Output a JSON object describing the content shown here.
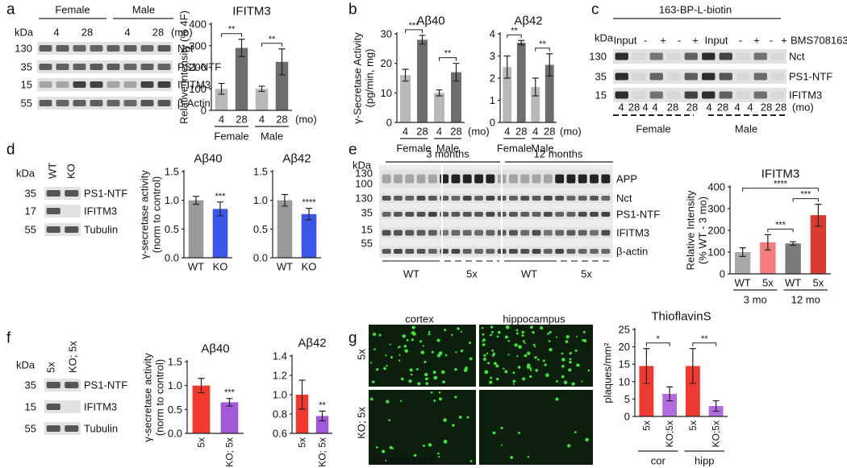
{
  "panels": [
    "a",
    "b",
    "c",
    "d",
    "e",
    "f",
    "g"
  ],
  "blot_a": {
    "kda_label": "kDa",
    "groups": [
      "Female",
      "Male"
    ],
    "times": [
      "4",
      "28",
      "4",
      "28"
    ],
    "unit": "(mo)",
    "markers": [
      "130",
      "35",
      "15",
      "55"
    ],
    "proteins": [
      "Nct",
      "PS1-NTF",
      "IFITM3",
      "β-Actin"
    ]
  },
  "blot_c": {
    "title": "163-BP-L-biotin",
    "kda_label": "kDa",
    "lanes": [
      "Input",
      "-",
      "+",
      "-",
      "+",
      "Input",
      "-",
      "+",
      "-",
      "+"
    ],
    "compound": "BMS708163",
    "markers": [
      "130",
      "35",
      "15"
    ],
    "proteins": [
      "Nct",
      "PS1-NTF",
      "IFITM3"
    ],
    "times": [
      "4",
      "28",
      "4",
      "4",
      "28",
      "28",
      "4",
      "28",
      "4",
      "4",
      "28",
      "28"
    ],
    "unit": "(mo)",
    "groups": [
      "Female",
      "Male"
    ]
  },
  "blot_d": {
    "kda_label": "kDa",
    "lanes": [
      "WT",
      "KO"
    ],
    "markers": [
      "35",
      "17",
      "55"
    ],
    "proteins": [
      "PS1-NTF",
      "IFITM3",
      "Tubulin"
    ]
  },
  "blot_e": {
    "kda_label": "kDa",
    "periods": [
      "3 months",
      "12 months"
    ],
    "markers": [
      "130",
      "100",
      "130",
      "35",
      "15",
      "55"
    ],
    "proteins": [
      "APP",
      "Nct",
      "PS1-NTF",
      "IFITM3",
      "β-actin"
    ],
    "genotypes": [
      "WT",
      "5x",
      "WT",
      "5x"
    ]
  },
  "blot_f": {
    "kda_label": "kDa",
    "lanes": [
      "5x",
      "KO; 5x"
    ],
    "markers": [
      "35",
      "15",
      "55"
    ],
    "proteins": [
      "PS1-NTF",
      "IFITM3",
      "Tubulin"
    ]
  },
  "images_g": {
    "columns": [
      "cortex",
      "hippocampus"
    ],
    "rows": [
      "5x",
      "KO; 5x"
    ],
    "stain": "ThioflavinS"
  },
  "chart_data": [
    {
      "type": "bar",
      "title": "IFITM3",
      "ylabel": [
        "Relative intensity (% 4F)"
      ],
      "categories": [
        "4",
        "28",
        "4",
        "28"
      ],
      "values": [
        100,
        290,
        100,
        225
      ],
      "errors": [
        25,
        40,
        12,
        60
      ],
      "colors": [
        "#b8b8b8",
        "#6e6e6e",
        "#b8b8b8",
        "#6e6e6e"
      ],
      "ylim": [
        0,
        400
      ],
      "yticks": [
        0,
        100,
        200,
        300,
        400
      ],
      "groups": [
        "Female",
        "Male"
      ],
      "unit": "(mo)",
      "annotations": [
        "**",
        "**"
      ]
    },
    {
      "type": "bar",
      "title": "Aβ40",
      "ylabel": [
        "γ-Secretase Activity",
        "(pg/min, mg)"
      ],
      "categories": [
        "4",
        "28",
        "4",
        "28"
      ],
      "values": [
        16,
        28,
        10,
        17
      ],
      "errors": [
        2,
        1.5,
        1,
        3
      ],
      "colors": [
        "#b8b8b8",
        "#6e6e6e",
        "#b8b8b8",
        "#6e6e6e"
      ],
      "ylim": [
        0,
        30
      ],
      "yticks": [
        0,
        10,
        20,
        30
      ],
      "groups": [
        "Female",
        "Male"
      ],
      "unit": "(mo)",
      "annotations": [
        "***",
        "**"
      ]
    },
    {
      "type": "bar",
      "title": "Aβ42",
      "categories": [
        "4",
        "28",
        "4",
        "28"
      ],
      "values": [
        2.5,
        3.6,
        1.6,
        2.6
      ],
      "errors": [
        0.5,
        0.1,
        0.4,
        0.5
      ],
      "colors": [
        "#b8b8b8",
        "#6e6e6e",
        "#b8b8b8",
        "#6e6e6e"
      ],
      "ylim": [
        0,
        4
      ],
      "yticks": [
        0,
        1,
        2,
        3,
        4
      ],
      "groups": [
        "Female",
        "Male"
      ],
      "unit": "(mo)",
      "annotations": [
        "**",
        "**"
      ]
    },
    {
      "type": "bar",
      "title": "Aβ40",
      "ylabel": [
        "γ-secretase activity",
        "(norm to control)"
      ],
      "categories": [
        "WT",
        "KO"
      ],
      "values": [
        1.0,
        0.85
      ],
      "errors": [
        0.07,
        0.12
      ],
      "colors": [
        "#9a9a9a",
        "#3a56e8"
      ],
      "ylim": [
        0,
        1.5
      ],
      "yticks": [
        {
          "value": 0,
          "label": "0.0"
        },
        0.5,
        {
          "value": 1,
          "label": "1.0"
        },
        1.5
      ],
      "annotations": [
        "***"
      ]
    },
    {
      "type": "bar",
      "title": "Aβ42",
      "categories": [
        "WT",
        "KO"
      ],
      "values": [
        1.0,
        0.76
      ],
      "errors": [
        0.1,
        0.1
      ],
      "colors": [
        "#9a9a9a",
        "#3a56e8"
      ],
      "ylim": [
        0,
        1.5
      ],
      "yticks": [
        {
          "value": 0,
          "label": "0.0"
        },
        0.5,
        {
          "value": 1,
          "label": "1.0"
        },
        1.5
      ],
      "annotations": [
        "****"
      ]
    },
    {
      "type": "bar",
      "title": "IFITM3",
      "ylabel": [
        "Relative Intensity",
        "(% WT - 3 mo)"
      ],
      "categories": [
        "WT",
        "5x",
        "WT",
        "5x"
      ],
      "values": [
        100,
        145,
        140,
        270
      ],
      "errors": [
        20,
        35,
        8,
        50
      ],
      "colors": [
        "#a9a9a9",
        "#f47c7c",
        "#7b7b7b",
        "#d93a2f"
      ],
      "ylim": [
        0,
        400
      ],
      "yticks": [
        0,
        100,
        200,
        300,
        400
      ],
      "groups": [
        "3 mo",
        "12 mo"
      ],
      "annotations": [
        "***",
        "***",
        "****"
      ]
    },
    {
      "type": "bar",
      "title": "Aβ40",
      "ylabel": [
        "γ-secretase activity",
        "(norm to control)"
      ],
      "categories": [
        "5x",
        "KO; 5x"
      ],
      "values": [
        1.0,
        0.65
      ],
      "errors": [
        0.15,
        0.08
      ],
      "colors": [
        "#f2392c",
        "#a259d9"
      ],
      "ylim": [
        0,
        1.5
      ],
      "yticks": [
        {
          "value": 0,
          "label": "0.0"
        },
        0.5,
        {
          "value": 1,
          "label": "1.0"
        },
        1.5
      ],
      "annotations": [
        "***"
      ]
    },
    {
      "type": "bar",
      "title": "Aβ42",
      "categories": [
        "5x",
        "KO; 5x"
      ],
      "values": [
        1.0,
        0.78
      ],
      "errors": [
        0.15,
        0.05
      ],
      "colors": [
        "#f2392c",
        "#a259d9"
      ],
      "ylim": [
        0.6,
        1.4
      ],
      "yticks": [
        0.6,
        0.8,
        {
          "value": 1,
          "label": "1.0"
        },
        1.2,
        1.4
      ],
      "annotations": [
        "**"
      ]
    },
    {
      "type": "bar",
      "title": "ThioflavinS",
      "ylabel": [
        "plaques/mm²"
      ],
      "categories": [
        "5x",
        "KO;5x",
        "5x",
        "KO;5x"
      ],
      "values": [
        14.5,
        6.5,
        14.5,
        3
      ],
      "errors": [
        5,
        2,
        5,
        1.5
      ],
      "colors": [
        "#ee3a30",
        "#b36be0",
        "#ee3a30",
        "#b36be0"
      ],
      "ylim": [
        0,
        25
      ],
      "yticks": [
        0,
        5,
        10,
        15,
        20,
        25
      ],
      "groups": [
        "cor",
        "hipp"
      ],
      "annotations": [
        "*",
        "**"
      ]
    }
  ]
}
